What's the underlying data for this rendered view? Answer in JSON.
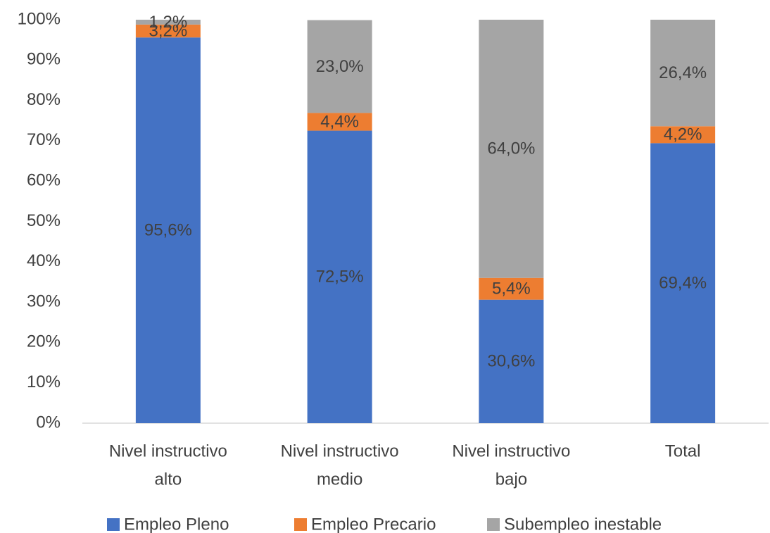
{
  "chart_data": {
    "type": "stacked_bar",
    "categories": [
      [
        "Nivel instructivo",
        "alto"
      ],
      [
        "Nivel instructivo",
        "medio"
      ],
      [
        "Nivel instructivo",
        "bajo"
      ],
      [
        "Total"
      ]
    ],
    "series": [
      {
        "name": "Empleo Pleno",
        "color": "#4472c4",
        "values": [
          95.6,
          72.5,
          30.6,
          69.4
        ],
        "value_labels": [
          "95,6%",
          "72,5%",
          "30,6%",
          "69,4%"
        ]
      },
      {
        "name": "Empleo Precario",
        "color": "#ed7d31",
        "values": [
          3.2,
          4.4,
          5.4,
          4.2
        ],
        "value_labels": [
          "3,2%",
          "4,4%",
          "5,4%",
          "4,2%"
        ]
      },
      {
        "name": "Subempleo inestable",
        "color": "#a5a5a5",
        "values": [
          1.2,
          23.0,
          64.0,
          26.4
        ],
        "value_labels": [
          "1,2%",
          "23,0%",
          "64,0%",
          "26,4%"
        ]
      }
    ],
    "ylim": [
      0,
      100
    ],
    "yticks": [
      {
        "value": 0,
        "label": "0%"
      },
      {
        "value": 10,
        "label": "10%"
      },
      {
        "value": 20,
        "label": "20%"
      },
      {
        "value": 30,
        "label": "30%"
      },
      {
        "value": 40,
        "label": "40%"
      },
      {
        "value": 50,
        "label": "50%"
      },
      {
        "value": 60,
        "label": "60%"
      },
      {
        "value": 70,
        "label": "70%"
      },
      {
        "value": 80,
        "label": "80%"
      },
      {
        "value": 90,
        "label": "90%"
      },
      {
        "value": 100,
        "label": "100%"
      }
    ],
    "grid": false,
    "legend": "bottom"
  }
}
